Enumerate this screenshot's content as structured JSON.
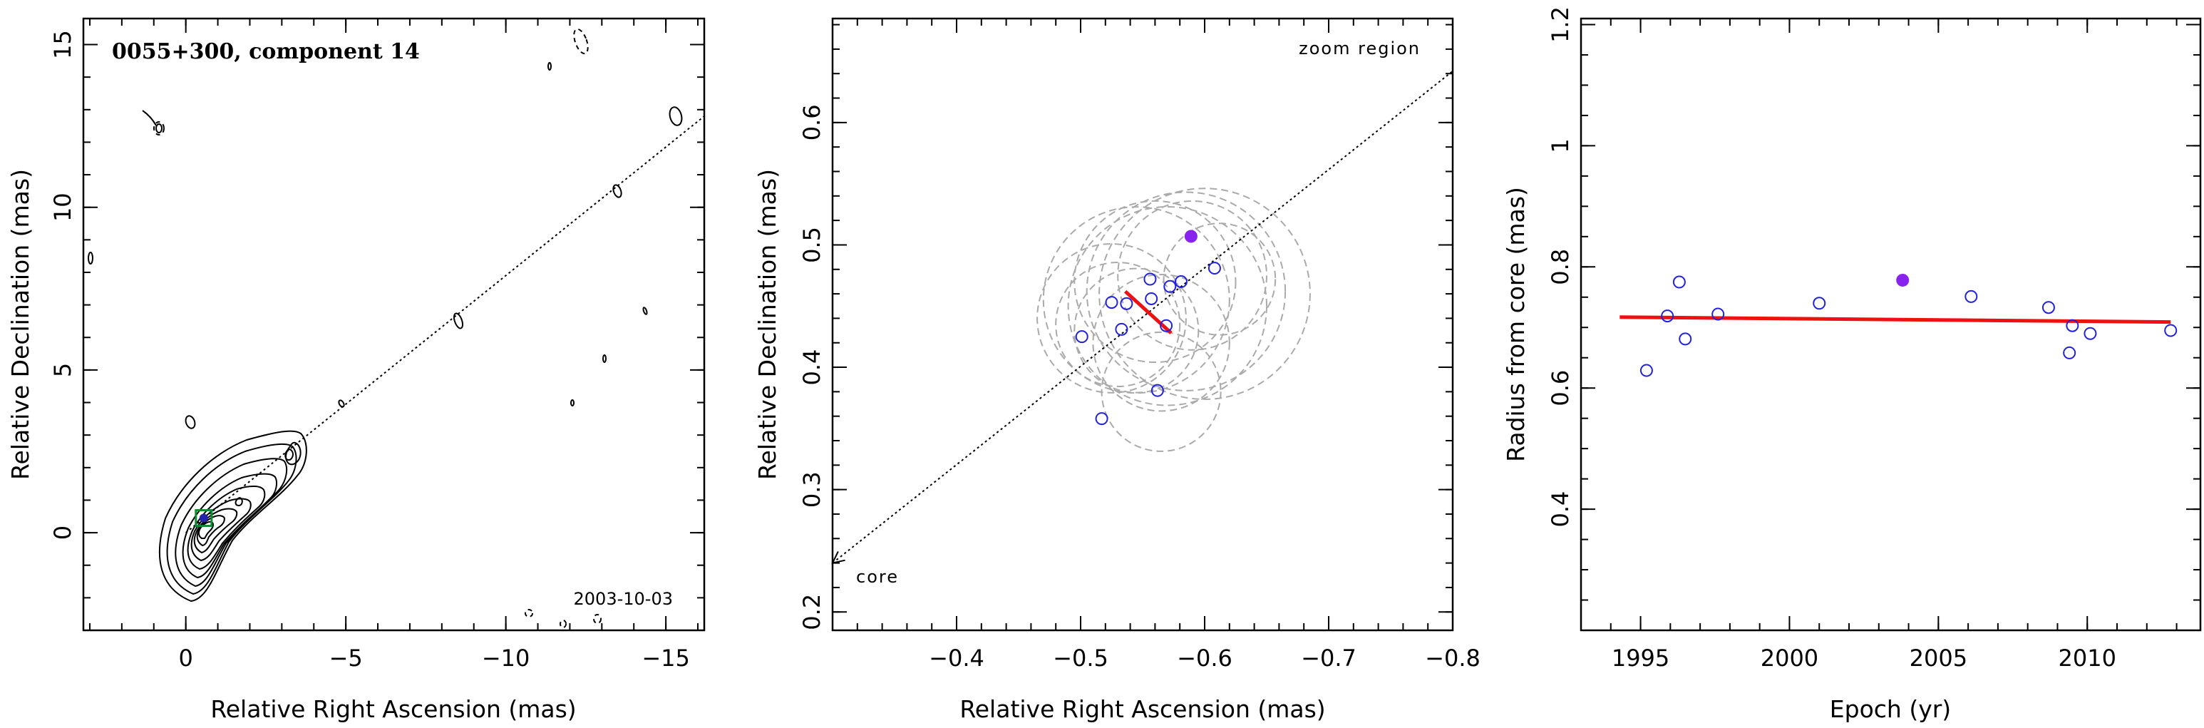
{
  "chart_data": [
    {
      "type": "contour",
      "title": "0055+300, component 14",
      "annotation": "2003-10-03",
      "xlabel": "Relative Right Ascension (mas)",
      "ylabel": "Relative Declination (mas)",
      "xlim": [
        3.2,
        -16.2
      ],
      "ylim": [
        -3,
        15.8
      ],
      "xticks": [
        0,
        -5,
        -10,
        -15
      ],
      "xtick_labels": [
        "0",
        "−5",
        "−10",
        "−15"
      ],
      "yticks": [
        0,
        5,
        10,
        15
      ],
      "ytick_labels": [
        "0",
        "5",
        "10",
        "15"
      ],
      "component_position": {
        "x": -0.56,
        "y": 0.45
      },
      "jet_line": {
        "from": {
          "x": 0,
          "y": 0
        },
        "to": {
          "x": -16.2,
          "y": 12.8
        }
      }
    },
    {
      "type": "scatter",
      "annotation_top": "zoom region",
      "annotation_core": "core",
      "xlabel": "Relative Right Ascension (mas)",
      "ylabel": "Relative Declination (mas)",
      "xlim": [
        -0.3,
        -0.8
      ],
      "ylim": [
        0.185,
        0.685
      ],
      "xticks": [
        -0.4,
        -0.5,
        -0.6,
        -0.7,
        -0.8
      ],
      "xtick_labels": [
        "−0.4",
        "−0.5",
        "−0.6",
        "−0.7",
        "−0.8"
      ],
      "yticks": [
        0.2,
        0.3,
        0.4,
        0.5,
        0.6
      ],
      "ytick_labels": [
        "0.2",
        "0.3",
        "0.4",
        "0.5",
        "0.6"
      ],
      "points": [
        {
          "x": -0.501,
          "y": 0.425
        },
        {
          "x": -0.517,
          "y": 0.358
        },
        {
          "x": -0.525,
          "y": 0.453
        },
        {
          "x": -0.533,
          "y": 0.431
        },
        {
          "x": -0.537,
          "y": 0.452
        },
        {
          "x": -0.556,
          "y": 0.472
        },
        {
          "x": -0.557,
          "y": 0.456
        },
        {
          "x": -0.562,
          "y": 0.381
        },
        {
          "x": -0.569,
          "y": 0.434
        },
        {
          "x": -0.572,
          "y": 0.466
        },
        {
          "x": -0.581,
          "y": 0.47
        },
        {
          "x": -0.608,
          "y": 0.481
        }
      ],
      "highlight_point": {
        "x": -0.589,
        "y": 0.507
      },
      "fit_line": {
        "from": {
          "x": -0.536,
          "y": 0.462
        },
        "to": {
          "x": -0.573,
          "y": 0.428
        }
      },
      "beam_circles": [
        {
          "x": -0.545,
          "y": 0.455,
          "r": 0.075
        },
        {
          "x": -0.57,
          "y": 0.45,
          "r": 0.08
        },
        {
          "x": -0.585,
          "y": 0.462,
          "r": 0.08
        },
        {
          "x": -0.6,
          "y": 0.46,
          "r": 0.085
        },
        {
          "x": -0.59,
          "y": 0.475,
          "r": 0.06
        },
        {
          "x": -0.56,
          "y": 0.47,
          "r": 0.065
        },
        {
          "x": -0.53,
          "y": 0.435,
          "r": 0.05
        },
        {
          "x": -0.525,
          "y": 0.44,
          "r": 0.06
        },
        {
          "x": -0.545,
          "y": 0.43,
          "r": 0.05
        },
        {
          "x": -0.565,
          "y": 0.38,
          "r": 0.048
        },
        {
          "x": -0.565,
          "y": 0.42,
          "r": 0.055
        },
        {
          "x": -0.612,
          "y": 0.472,
          "r": 0.045
        }
      ],
      "direction_line": {
        "from": {
          "x": -0.3,
          "y": 0.24
        },
        "to": {
          "x": -0.8,
          "y": 0.642
        }
      }
    },
    {
      "type": "scatter",
      "xlabel": "Epoch (yr)",
      "ylabel": "Radius from core (mas)",
      "xlim": [
        1993.0,
        2013.8
      ],
      "ylim": [
        0.2,
        1.21
      ],
      "xticks": [
        1995,
        2000,
        2005,
        2010
      ],
      "xtick_labels": [
        "1995",
        "2000",
        "2005",
        "2010"
      ],
      "yticks": [
        0.4,
        0.6,
        0.8,
        1.0,
        1.2
      ],
      "ytick_labels": [
        "0.4",
        "0.6",
        "0.8",
        "1",
        "1.2"
      ],
      "points": [
        {
          "x": 1995.2,
          "y": 0.629
        },
        {
          "x": 1995.9,
          "y": 0.719
        },
        {
          "x": 1996.3,
          "y": 0.775
        },
        {
          "x": 1996.5,
          "y": 0.681
        },
        {
          "x": 1997.6,
          "y": 0.722
        },
        {
          "x": 2001.0,
          "y": 0.74
        },
        {
          "x": 2006.1,
          "y": 0.751
        },
        {
          "x": 2008.7,
          "y": 0.733
        },
        {
          "x": 2009.4,
          "y": 0.658
        },
        {
          "x": 2009.5,
          "y": 0.703
        },
        {
          "x": 2010.1,
          "y": 0.69
        },
        {
          "x": 2012.8,
          "y": 0.695
        }
      ],
      "highlight_point": {
        "x": 2003.8,
        "y": 0.778
      },
      "fit_line": {
        "from": {
          "x": 1994.3,
          "y": 0.717
        },
        "to": {
          "x": 2012.8,
          "y": 0.709
        }
      }
    }
  ],
  "colors": {
    "open_point": "#2222dd",
    "highlight_point": "#8822ee",
    "fit_line": "#ee1111",
    "beam_circle": "#aaaaaa",
    "component_box": "#118833"
  }
}
